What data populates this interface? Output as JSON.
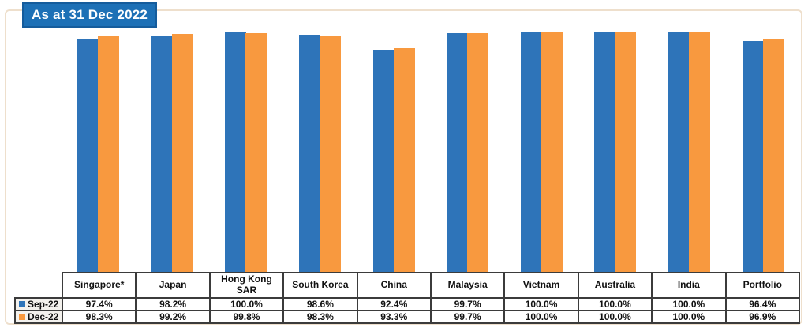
{
  "chart_data": {
    "type": "bar",
    "title": "As at 31 Dec 2022",
    "categories": [
      "Singapore*",
      "Japan",
      "Hong Kong SAR",
      "South Korea",
      "China",
      "Malaysia",
      "Vietnam",
      "Australia",
      "India",
      "Portfolio"
    ],
    "series": [
      {
        "name": "Sep-22",
        "color": "#2E74B9",
        "values": [
          97.4,
          98.2,
          100.0,
          98.6,
          92.4,
          99.7,
          100.0,
          100.0,
          100.0,
          96.4
        ]
      },
      {
        "name": "Dec-22",
        "color": "#F8993F",
        "values": [
          98.3,
          99.2,
          99.8,
          98.3,
          93.3,
          99.7,
          100.0,
          100.0,
          100.0,
          96.9
        ]
      }
    ],
    "ylim": [
      0,
      100
    ],
    "xlabel": "",
    "ylabel": "",
    "axes_hidden": true,
    "gridlines": false,
    "legend_position": "table-row-headers",
    "value_suffix": "%"
  },
  "table": {
    "rows": [
      {
        "label": "Sep-22",
        "values": [
          "97.4%",
          "98.2%",
          "100.0%",
          "98.6%",
          "92.4%",
          "99.7%",
          "100.0%",
          "100.0%",
          "100.0%",
          "96.4%"
        ]
      },
      {
        "label": "Dec-22",
        "values": [
          "98.3%",
          "99.2%",
          "99.8%",
          "98.3%",
          "93.3%",
          "99.7%",
          "100.0%",
          "100.0%",
          "100.0%",
          "96.9%"
        ]
      }
    ]
  },
  "colors": {
    "title_bg": "#1D70B6",
    "title_border": "#155C9C",
    "frame_border": "#EEDFCC",
    "table_border": "#3B3B3B",
    "label_cell_bg": "#F3F1ED",
    "sep_22": "#2E74B9",
    "dec_22": "#F8993F"
  }
}
